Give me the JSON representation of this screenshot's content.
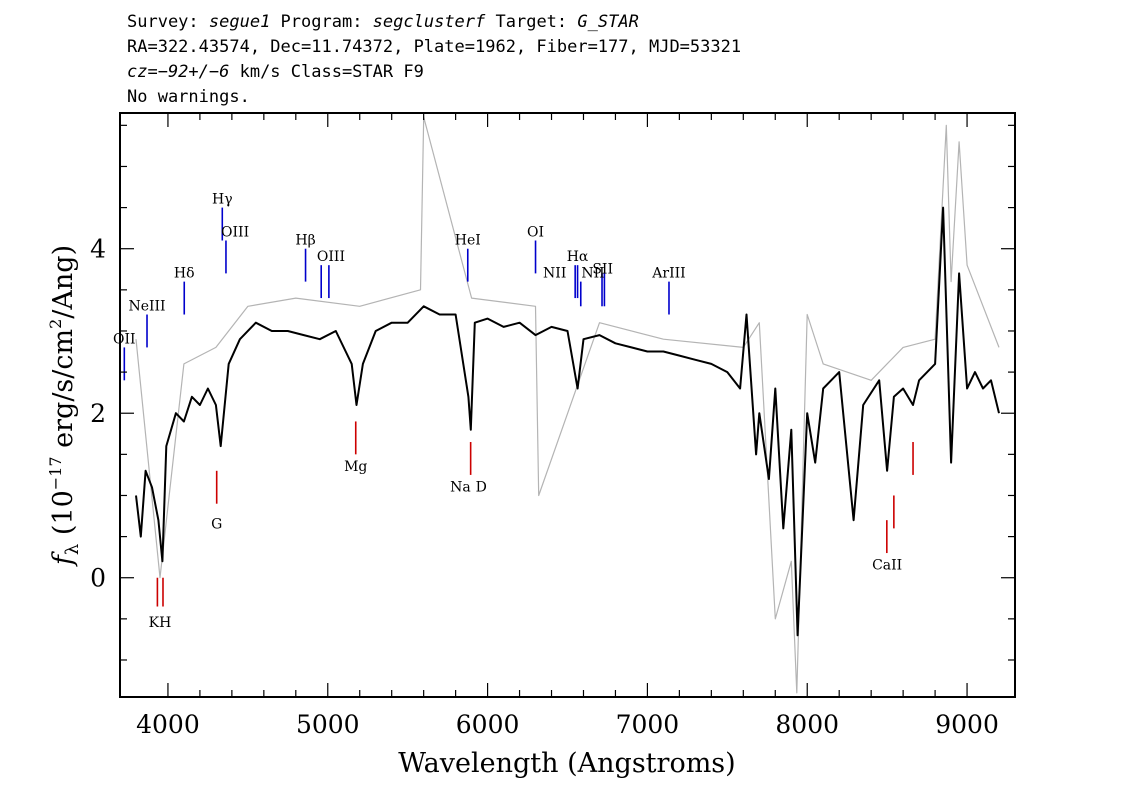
{
  "header": {
    "line1_a": "Survey: ",
    "line1_survey": "segue1",
    "line1_b": " Program: ",
    "line1_program": "segclusterf",
    "line1_c": " Target: ",
    "line1_target": "G_STAR",
    "line2": "RA=322.43574, Dec=11.74372, Plate=1962, Fiber=177, MJD=53321",
    "line3_cz": "cz=−92+/−6",
    "line3_rest": " km/s Class=STAR F9",
    "line4": "No warnings."
  },
  "chart_data": {
    "type": "line",
    "xlabel": "Wavelength (Angstroms)",
    "ylabel_prefix": "f",
    "ylabel_sub": "λ",
    "ylabel_main": "(10",
    "ylabel_exp": "−17",
    "ylabel_units": "erg/s/cm",
    "ylabel_exp2": "2",
    "ylabel_end": "/Ang)",
    "xlim": [
      3700,
      9300
    ],
    "ylim": [
      -1.45,
      5.65
    ],
    "x_ticks": [
      4000,
      5000,
      6000,
      7000,
      8000,
      9000
    ],
    "x_tick_labels": [
      "4000",
      "5000",
      "6000",
      "7000",
      "8000",
      "9000"
    ],
    "y_ticks": [
      0,
      2,
      4
    ],
    "y_tick_labels": [
      "0",
      "2",
      "4"
    ],
    "series": [
      {
        "role": "flux",
        "color": "#000000",
        "x": [
          3800,
          3830,
          3860,
          3900,
          3940,
          3965,
          3990,
          4050,
          4100,
          4150,
          4200,
          4250,
          4300,
          4330,
          4380,
          4450,
          4550,
          4650,
          4750,
          4850,
          4950,
          5050,
          5150,
          5180,
          5220,
          5300,
          5400,
          5500,
          5600,
          5700,
          5800,
          5880,
          5895,
          5920,
          6000,
          6100,
          6200,
          6300,
          6400,
          6500,
          6563,
          6600,
          6700,
          6800,
          6900,
          7000,
          7100,
          7200,
          7300,
          7400,
          7500,
          7580,
          7620,
          7680,
          7700,
          7760,
          7800,
          7850,
          7900,
          7940,
          8000,
          8050,
          8100,
          8200,
          8290,
          8350,
          8450,
          8500,
          8542,
          8600,
          8662,
          8700,
          8800,
          8850,
          8900,
          8950,
          9000,
          9050,
          9100,
          9150,
          9200
        ],
        "y": [
          1.0,
          0.5,
          1.3,
          1.1,
          0.7,
          0.2,
          1.6,
          2.0,
          1.9,
          2.2,
          2.1,
          2.3,
          2.1,
          1.6,
          2.6,
          2.9,
          3.1,
          3.0,
          3.0,
          2.95,
          2.9,
          3.0,
          2.6,
          2.1,
          2.6,
          3.0,
          3.1,
          3.1,
          3.3,
          3.2,
          3.2,
          2.2,
          1.8,
          3.1,
          3.15,
          3.05,
          3.1,
          2.95,
          3.05,
          3.0,
          2.3,
          2.9,
          2.95,
          2.85,
          2.8,
          2.75,
          2.75,
          2.7,
          2.65,
          2.6,
          2.5,
          2.3,
          3.2,
          1.5,
          2.0,
          1.2,
          2.3,
          0.6,
          1.8,
          -0.7,
          2.0,
          1.4,
          2.3,
          2.5,
          0.7,
          2.1,
          2.4,
          1.3,
          2.2,
          2.3,
          2.1,
          2.4,
          2.6,
          4.5,
          1.4,
          3.7,
          2.3,
          2.5,
          2.3,
          2.4,
          2.0
        ]
      },
      {
        "role": "noise",
        "color": "#b4b4b4",
        "x": [
          3800,
          3950,
          4100,
          4300,
          4500,
          4800,
          5200,
          5580,
          5600,
          5900,
          6300,
          6320,
          6700,
          7100,
          7600,
          7700,
          7800,
          7900,
          7935,
          8000,
          8100,
          8400,
          8600,
          8800,
          8870,
          8900,
          8950,
          9000,
          9200
        ],
        "y": [
          2.9,
          0.0,
          2.6,
          2.8,
          3.3,
          3.4,
          3.3,
          3.5,
          5.6,
          3.4,
          3.3,
          1.0,
          3.1,
          2.9,
          2.8,
          3.1,
          -0.5,
          0.2,
          -1.4,
          3.2,
          2.6,
          2.4,
          2.8,
          2.9,
          5.5,
          3.6,
          5.3,
          3.8,
          2.8
        ]
      }
    ],
    "line_markers": [
      {
        "label": "OII",
        "x": 3727,
        "y1": 2.4,
        "y2": 2.8,
        "color": "#0000cc"
      },
      {
        "label": "NeIII",
        "x": 3869,
        "y1": 2.8,
        "y2": 3.2,
        "color": "#0000cc"
      },
      {
        "label": "Hδ",
        "x": 4102,
        "y1": 3.2,
        "y2": 3.6,
        "color": "#0000cc"
      },
      {
        "label": "Hγ",
        "x": 4340,
        "y1": 4.1,
        "y2": 4.5,
        "color": "#0000cc"
      },
      {
        "label": "OIII",
        "x": 4363,
        "y1": 3.7,
        "y2": 4.1,
        "color": "#0000cc"
      },
      {
        "label": "Hβ",
        "x": 4861,
        "y1": 3.6,
        "y2": 4.0,
        "color": "#0000cc"
      },
      {
        "label": "OIII",
        "x": 4959,
        "y1": 3.4,
        "y2": 3.8,
        "color": "#0000cc"
      },
      {
        "label": "",
        "x": 5007,
        "y1": 3.4,
        "y2": 3.8,
        "color": "#0000cc"
      },
      {
        "label": "HeI",
        "x": 5876,
        "y1": 3.6,
        "y2": 4.0,
        "color": "#0000cc"
      },
      {
        "label": "OI",
        "x": 6300,
        "y1": 3.7,
        "y2": 4.1,
        "color": "#0000cc"
      },
      {
        "label": "NII",
        "x": 6548,
        "y1": 3.4,
        "y2": 3.8,
        "color": "#0000cc"
      },
      {
        "label": "Hα",
        "x": 6563,
        "y1": 3.4,
        "y2": 3.8,
        "color": "#0000cc"
      },
      {
        "label": "NII",
        "x": 6583,
        "y1": 3.3,
        "y2": 3.6,
        "color": "#0000cc"
      },
      {
        "label": "SII",
        "x": 6716,
        "y1": 3.3,
        "y2": 3.7,
        "color": "#0000cc"
      },
      {
        "label": "",
        "x": 6731,
        "y1": 3.3,
        "y2": 3.7,
        "color": "#0000cc"
      },
      {
        "label": "ArIII",
        "x": 7135,
        "y1": 3.2,
        "y2": 3.6,
        "color": "#0000cc"
      },
      {
        "label": "K",
        "x": 3934,
        "y1": -0.35,
        "y2": 0.0,
        "color": "#cc0000"
      },
      {
        "label": "H",
        "x": 3969,
        "y1": -0.35,
        "y2": 0.0,
        "color": "#cc0000"
      },
      {
        "label": "G",
        "x": 4305,
        "y1": 0.9,
        "y2": 1.3,
        "color": "#cc0000"
      },
      {
        "label": "Mg",
        "x": 5175,
        "y1": 1.5,
        "y2": 1.9,
        "color": "#cc0000"
      },
      {
        "label": "Na",
        "x": 5894,
        "y1": 1.25,
        "y2": 1.65,
        "color": "#cc0000"
      },
      {
        "label": "CaII",
        "x": 8498,
        "y1": 0.3,
        "y2": 0.7,
        "color": "#cc0000"
      },
      {
        "label": "",
        "x": 8542,
        "y1": 0.6,
        "y2": 1.0,
        "color": "#cc0000"
      },
      {
        "label": "",
        "x": 8662,
        "y1": 1.25,
        "y2": 1.65,
        "color": "#cc0000"
      }
    ],
    "marker_labels": [
      {
        "text": "OII",
        "x": 3727,
        "y": 2.85
      },
      {
        "text": "NeIII",
        "x": 3869,
        "y": 3.25
      },
      {
        "text": "Hδ",
        "x": 4102,
        "y": 3.65
      },
      {
        "text": "Hγ",
        "x": 4340,
        "y": 4.55
      },
      {
        "text": "OIII",
        "x": 4420,
        "y": 4.15
      },
      {
        "text": "Hβ",
        "x": 4861,
        "y": 4.05
      },
      {
        "text": "OIII",
        "x": 5020,
        "y": 3.85
      },
      {
        "text": "HeI",
        "x": 5876,
        "y": 4.05
      },
      {
        "text": "OI",
        "x": 6300,
        "y": 4.15
      },
      {
        "text": "NII",
        "x": 6420,
        "y": 3.65
      },
      {
        "text": "Hα",
        "x": 6563,
        "y": 3.85
      },
      {
        "text": "NII",
        "x": 6660,
        "y": 3.65
      },
      {
        "text": "SII",
        "x": 6720,
        "y": 3.7
      },
      {
        "text": "ArIII",
        "x": 7135,
        "y": 3.65
      },
      {
        "text": "KH",
        "x": 3950,
        "y": -0.6
      },
      {
        "text": "G",
        "x": 4305,
        "y": 0.6
      },
      {
        "text": "Mg",
        "x": 5175,
        "y": 1.3
      },
      {
        "text": "Na",
        "x": 5830,
        "y": 1.05
      },
      {
        "text": "D",
        "x": 5960,
        "y": 1.05
      },
      {
        "text": "CaII",
        "x": 8500,
        "y": 0.1
      }
    ]
  }
}
